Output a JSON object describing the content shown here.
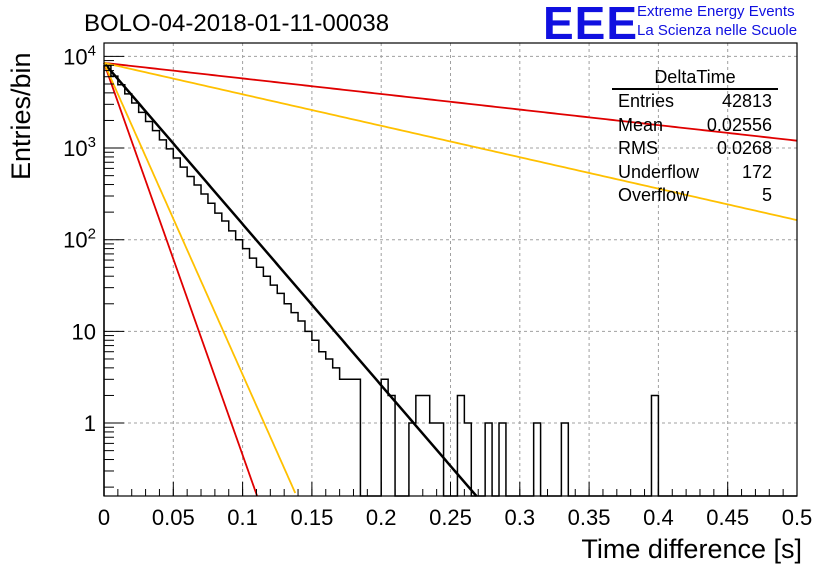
{
  "title": "BOLO-04-2018-01-11-00038",
  "logo": {
    "mark": "EEE",
    "line1": "Extreme Energy Events",
    "line2": "La Scienza nelle Scuole",
    "color": "#1010e0"
  },
  "stats_box": {
    "name": "DeltaTime",
    "rows": [
      {
        "label": "Entries",
        "value": "42813"
      },
      {
        "label": "Mean",
        "value": "0.02556"
      },
      {
        "label": "RMS",
        "value": "0.0268"
      },
      {
        "label": "Underflow",
        "value": "172"
      },
      {
        "label": "Overflow",
        "value": "5"
      }
    ]
  },
  "chart_data": {
    "type": "line",
    "xlabel": "Time difference [s]",
    "ylabel": "Entries/bin",
    "xlim": [
      0,
      0.5
    ],
    "ylim": [
      0.16,
      14000
    ],
    "yscale": "log",
    "grid": true,
    "x_ticks": [
      "0",
      "0.05",
      "0.1",
      "0.15",
      "0.2",
      "0.25",
      "0.3",
      "0.35",
      "0.4",
      "0.45",
      "0.5"
    ],
    "y_ticks": [
      {
        "value": 10000,
        "base": "10",
        "exp": "4"
      },
      {
        "value": 1000,
        "base": "10",
        "exp": "3"
      },
      {
        "value": 100,
        "base": "10",
        "exp": "2"
      },
      {
        "value": 10,
        "base": "10",
        "exp": ""
      },
      {
        "value": 1,
        "base": "1",
        "exp": ""
      }
    ],
    "histogram": {
      "bin_width": 0.005,
      "color": "#000000",
      "counts": [
        7900,
        6100,
        4900,
        3900,
        3100,
        2450,
        1950,
        1550,
        1230,
        980,
        780,
        620,
        490,
        395,
        315,
        250,
        195,
        160,
        125,
        100,
        80,
        63,
        50,
        40,
        32,
        26,
        20,
        16,
        13,
        10,
        8,
        6,
        5,
        4,
        3,
        3,
        3,
        0,
        0,
        0,
        3,
        2,
        0,
        0,
        1,
        2,
        2,
        1,
        1,
        0,
        0,
        2,
        1,
        0,
        0,
        1,
        0,
        1,
        0,
        0,
        0,
        0,
        1,
        0,
        0,
        0,
        1,
        0,
        0,
        0,
        0,
        0,
        0,
        0,
        0,
        0,
        0,
        0,
        0,
        2,
        0,
        0,
        0,
        0,
        0,
        0,
        0,
        0,
        0,
        0,
        0,
        0,
        0,
        0,
        0,
        0,
        0,
        0,
        0,
        0
      ]
    },
    "series": [
      {
        "color": "#000000",
        "width": 2.5,
        "type": "exp",
        "a": 8500,
        "b": -40.5,
        "x_end": 0.28
      },
      {
        "color": "#e00000",
        "width": 1.8,
        "type": "exp",
        "a": 8500,
        "b": -98.5,
        "x_end": 0.111
      },
      {
        "color": "#ffc000",
        "width": 1.8,
        "type": "exp",
        "a": 8500,
        "b": -78.3,
        "x_end": 0.138
      },
      {
        "color": "#e00000",
        "width": 1.8,
        "type": "exp",
        "a": 8500,
        "b": -3.91,
        "x_end": 0.5
      },
      {
        "color": "#ffc000",
        "width": 1.8,
        "type": "exp",
        "a": 8500,
        "b": -7.9,
        "x_end": 0.5
      }
    ]
  }
}
